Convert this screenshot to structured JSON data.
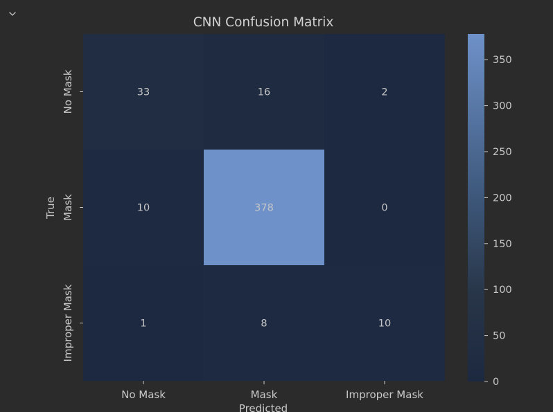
{
  "ui": {
    "collapse_icon": "chevron-down-icon"
  },
  "chart_data": {
    "type": "heatmap",
    "title": "CNN Confusion Matrix",
    "xlabel": "Predicted",
    "ylabel": "True",
    "x_categories": [
      "No Mask",
      "Mask",
      "Improper Mask"
    ],
    "y_categories": [
      "No Mask",
      "Mask",
      "Improper Mask"
    ],
    "values": [
      [
        33,
        16,
        2
      ],
      [
        10,
        378,
        0
      ],
      [
        1,
        8,
        10
      ]
    ],
    "colorbar": {
      "min": 0,
      "max": 378,
      "ticks": [
        0,
        50,
        100,
        150,
        200,
        250,
        300,
        350
      ],
      "colors": [
        "#1c2940",
        "#283548",
        "#6e91c9"
      ]
    }
  }
}
